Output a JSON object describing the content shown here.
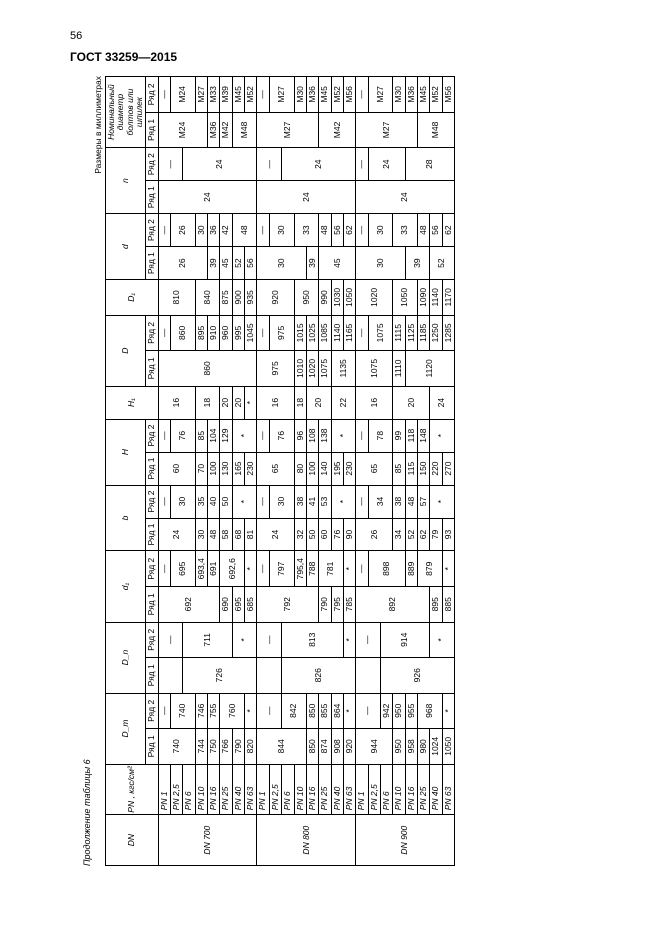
{
  "pageNumber": "56",
  "standard": "ГОСТ 33259—2015",
  "caption": "Продолжение таблицы 6",
  "rightNote": "Размеры в миллиметрах",
  "headers": {
    "DN": "DN",
    "PN": "PN , кгс/см²",
    "Dm": "D_m",
    "Dn": "D_n",
    "d1": "d₁",
    "b": "b",
    "H": "H",
    "H1": "H₁",
    "D": "D",
    "Dcap1": "D₁",
    "d": "d",
    "n": "n",
    "bolt": "Номинальный диаметр болтов или шпилек",
    "r1": "Ряд 1",
    "r2": "Ряд 2"
  },
  "groups": [
    {
      "dn": "DN 700",
      "rows": [
        {
          "pn": "PN 1",
          "Dm1": "740",
          "Dm2": "—",
          "Dn1": "",
          "Dn2": "—",
          "d11": "692",
          "d12": "—",
          "b1": "24",
          "b2": "—",
          "H1": "60",
          "H2": "—",
          "Hc": "16",
          "D1": "860",
          "D2": "—",
          "Dc": "810",
          "d1": "26",
          "d2": "—",
          "n1": "24",
          "n2": "—",
          "blt1": "M24",
          "blt2": "—"
        },
        {
          "pn": "PN 2,5",
          "Dm1": "",
          "Dm2": "740",
          "Dn1": "",
          "Dn2": "",
          "d11": "",
          "d12": "695",
          "b1": "",
          "b2": "30",
          "H1": "",
          "H2": "76",
          "Hc": "",
          "D1": "",
          "D2": "860",
          "Dc": "",
          "d1": "",
          "d2": "26",
          "n1": "",
          "n2": "",
          "blt1": "",
          "blt2": "M24"
        },
        {
          "pn": "PN 6",
          "Dm1": "",
          "Dm2": "",
          "Dn1": "726",
          "Dn2": "711",
          "d11": "",
          "d12": "",
          "b1": "",
          "b2": "",
          "H1": "",
          "H2": "",
          "Hc": "",
          "D1": "",
          "D2": "",
          "Dc": "",
          "d1": "",
          "d2": "",
          "n1": "",
          "n2": "24",
          "blt1": "",
          "blt2": ""
        },
        {
          "pn": "PN 10",
          "Dm1": "744",
          "Dm2": "746",
          "Dn1": "",
          "Dn2": "",
          "d11": "",
          "d12": "693,4",
          "b1": "30",
          "b2": "35",
          "H1": "70",
          "H2": "85",
          "Hc": "18",
          "D1": "",
          "D2": "895",
          "Dc": "840",
          "d1": "",
          "d2": "30",
          "n1": "",
          "n2": "",
          "blt1": "",
          "blt2": "M27"
        },
        {
          "pn": "PN 16",
          "Dm1": "750",
          "Dm2": "755",
          "Dn1": "",
          "Dn2": "",
          "d11": "",
          "d12": "691",
          "b1": "48",
          "b2": "40",
          "H1": "100",
          "H2": "104",
          "Hc": "",
          "D1": "",
          "D2": "910",
          "Dc": "",
          "d1": "39",
          "d2": "36",
          "n1": "",
          "n2": "",
          "blt1": "M36",
          "blt2": "M33"
        },
        {
          "pn": "PN 25",
          "Dm1": "766",
          "Dm2": "760",
          "Dn1": "",
          "Dn2": "",
          "d11": "690",
          "d12": "692,6",
          "b1": "58",
          "b2": "50",
          "H1": "130",
          "H2": "129",
          "Hc": "20",
          "D1": "",
          "D2": "960",
          "Dc": "875",
          "d1": "45",
          "d2": "42",
          "n1": "",
          "n2": "",
          "blt1": "M42",
          "blt2": "M39"
        },
        {
          "pn": "PN 40",
          "Dm1": "790",
          "Dm2": "",
          "Dn1": "",
          "Dn2": "*",
          "d11": "695",
          "d12": "",
          "b1": "68",
          "b2": "*",
          "H1": "165",
          "H2": "*",
          "Hc": "20",
          "D1": "",
          "D2": "995",
          "Dc": "900",
          "d1": "52",
          "d2": "48",
          "n1": "",
          "n2": "",
          "blt1": "M48",
          "blt2": "M45"
        },
        {
          "pn": "PN 63",
          "Dm1": "820",
          "Dm2": "*",
          "Dn1": "",
          "Dn2": "",
          "d11": "685",
          "d12": "*",
          "b1": "81",
          "b2": "",
          "H1": "230",
          "H2": "",
          "Hc": "*",
          "D1": "",
          "D2": "1045",
          "Dc": "935",
          "d1": "56",
          "d2": "",
          "n1": "",
          "n2": "",
          "blt1": "",
          "blt2": "M52"
        }
      ]
    },
    {
      "dn": "DN 800",
      "rows": [
        {
          "pn": "PN 1",
          "Dm1": "844",
          "Dm2": "—",
          "Dn1": "",
          "Dn2": "—",
          "d11": "792",
          "d12": "—",
          "b1": "24",
          "b2": "—",
          "H1": "65",
          "H2": "—",
          "Hc": "16",
          "D1": "975",
          "D2": "—",
          "Dc": "920",
          "d1": "30",
          "d2": "—",
          "n1": "24",
          "n2": "—",
          "blt1": "M27",
          "blt2": "—"
        },
        {
          "pn": "PN 2,5",
          "Dm1": "",
          "Dm2": "",
          "Dn1": "",
          "Dn2": "",
          "d11": "",
          "d12": "797",
          "b1": "",
          "b2": "30",
          "H1": "",
          "H2": "76",
          "Hc": "",
          "D1": "",
          "D2": "975",
          "Dc": "",
          "d1": "",
          "d2": "30",
          "n1": "",
          "n2": "",
          "blt1": "",
          "blt2": "M27"
        },
        {
          "pn": "PN 6",
          "Dm1": "",
          "Dm2": "842",
          "Dn1": "826",
          "Dn2": "813",
          "d11": "",
          "d12": "",
          "b1": "",
          "b2": "",
          "H1": "",
          "H2": "",
          "Hc": "",
          "D1": "",
          "D2": "",
          "Dc": "",
          "d1": "",
          "d2": "",
          "n1": "",
          "n2": "24",
          "blt1": "",
          "blt2": ""
        },
        {
          "pn": "PN 10",
          "Dm1": "",
          "Dm2": "",
          "Dn1": "",
          "Dn2": "",
          "d11": "",
          "d12": "795,4",
          "b1": "32",
          "b2": "38",
          "H1": "80",
          "H2": "96",
          "Hc": "18",
          "D1": "1010",
          "D2": "1015",
          "Dc": "950",
          "d1": "",
          "d2": "33",
          "n1": "",
          "n2": "",
          "blt1": "",
          "blt2": "M30"
        },
        {
          "pn": "PN 16",
          "Dm1": "850",
          "Dm2": "850",
          "Dn1": "",
          "Dn2": "",
          "d11": "",
          "d12": "788",
          "b1": "50",
          "b2": "41",
          "H1": "100",
          "H2": "108",
          "Hc": "20",
          "D1": "1020",
          "D2": "1025",
          "Dc": "",
          "d1": "39",
          "d2": "",
          "n1": "",
          "n2": "",
          "blt1": "",
          "blt2": "M36"
        },
        {
          "pn": "PN 25",
          "Dm1": "874",
          "Dm2": "855",
          "Dn1": "",
          "Dn2": "",
          "d11": "790",
          "d12": "781",
          "b1": "60",
          "b2": "53",
          "H1": "140",
          "H2": "138",
          "Hc": "",
          "D1": "1075",
          "D2": "1085",
          "Dc": "990",
          "d1": "45",
          "d2": "48",
          "n1": "",
          "n2": "",
          "blt1": "M42",
          "blt2": "M45"
        },
        {
          "pn": "PN 40",
          "Dm1": "908",
          "Dm2": "864",
          "Dn1": "",
          "Dn2": "",
          "d11": "795",
          "d12": "",
          "b1": "76",
          "b2": "*",
          "H1": "195",
          "H2": "*",
          "Hc": "22",
          "D1": "1135",
          "D2": "1140",
          "Dc": "1030",
          "d1": "",
          "d2": "56",
          "n1": "",
          "n2": "",
          "blt1": "",
          "blt2": "M52"
        },
        {
          "pn": "PN 63",
          "Dm1": "920",
          "Dm2": "*",
          "Dn1": "",
          "Dn2": "*",
          "d11": "785",
          "d12": "*",
          "b1": "90",
          "b2": "",
          "H1": "230",
          "H2": "",
          "Hc": "",
          "D1": "",
          "D2": "1165",
          "Dc": "1050",
          "d1": "",
          "d2": "62",
          "n1": "",
          "n2": "",
          "blt1": "",
          "blt2": "M56"
        }
      ]
    },
    {
      "dn": "DN 900",
      "rows": [
        {
          "pn": "PN 1",
          "Dm1": "944",
          "Dm2": "—",
          "Dn1": "",
          "Dn2": "—",
          "d11": "892",
          "d12": "—",
          "b1": "26",
          "b2": "—",
          "H1": "65",
          "H2": "—",
          "Hc": "16",
          "D1": "1075",
          "D2": "—",
          "Dc": "1020",
          "d1": "30",
          "d2": "—",
          "n1": "24",
          "n2": "—",
          "blt1": "M27",
          "blt2": "—"
        },
        {
          "pn": "PN 2,5",
          "Dm1": "",
          "Dm2": "",
          "Dn1": "",
          "Dn2": "",
          "d11": "",
          "d12": "898",
          "b1": "",
          "b2": "34",
          "H1": "",
          "H2": "78",
          "Hc": "",
          "D1": "",
          "D2": "1075",
          "Dc": "",
          "d1": "",
          "d2": "30",
          "n1": "",
          "n2": "24",
          "blt1": "",
          "blt2": "M27"
        },
        {
          "pn": "PN 6",
          "Dm1": "",
          "Dm2": "942",
          "Dn1": "926",
          "Dn2": "914",
          "d11": "",
          "d12": "",
          "b1": "",
          "b2": "",
          "H1": "",
          "H2": "",
          "Hc": "",
          "D1": "",
          "D2": "",
          "Dc": "",
          "d1": "",
          "d2": "",
          "n1": "",
          "n2": "",
          "blt1": "",
          "blt2": ""
        },
        {
          "pn": "PN 10",
          "Dm1": "950",
          "Dm2": "950",
          "Dn1": "",
          "Dn2": "",
          "d11": "",
          "d12": "",
          "b1": "34",
          "b2": "38",
          "H1": "85",
          "H2": "99",
          "Hc": "20",
          "D1": "1110",
          "D2": "1115",
          "Dc": "1050",
          "d1": "",
          "d2": "33",
          "n1": "",
          "n2": "",
          "blt1": "",
          "blt2": "M30"
        },
        {
          "pn": "PN 16",
          "Dm1": "958",
          "Dm2": "955",
          "Dn1": "",
          "Dn2": "",
          "d11": "",
          "d12": "889",
          "b1": "52",
          "b2": "48",
          "H1": "115",
          "H2": "118",
          "Hc": "",
          "D1": "1120",
          "D2": "1125",
          "Dc": "",
          "d1": "39",
          "d2": "",
          "n1": "",
          "n2": "28",
          "blt1": "",
          "blt2": "M36"
        },
        {
          "pn": "PN 25",
          "Dm1": "980",
          "Dm2": "968",
          "Dn1": "",
          "Dn2": "",
          "d11": "",
          "d12": "879",
          "b1": "62",
          "b2": "57",
          "H1": "150",
          "H2": "148",
          "Hc": "",
          "D1": "",
          "D2": "1185",
          "Dc": "1090",
          "d1": "",
          "d2": "48",
          "n1": "",
          "n2": "",
          "blt1": "M48",
          "blt2": "M45"
        },
        {
          "pn": "PN 40",
          "Dm1": "1024",
          "Dm2": "",
          "Dn1": "",
          "Dn2": "*",
          "d11": "895",
          "d12": "",
          "b1": "79",
          "b2": "*",
          "H1": "220",
          "H2": "*",
          "Hc": "24",
          "D1": "",
          "D2": "1250",
          "Dc": "1140",
          "d1": "52",
          "d2": "56",
          "n1": "",
          "n2": "",
          "blt1": "",
          "blt2": "M52"
        },
        {
          "pn": "PN 63",
          "Dm1": "1050",
          "Dm2": "*",
          "Dn1": "",
          "Dn2": "",
          "d11": "885",
          "d12": "*",
          "b1": "93",
          "b2": "",
          "H1": "270",
          "H2": "",
          "Hc": "",
          "D1": "",
          "D2": "1285",
          "Dc": "1170",
          "d1": "",
          "d2": "62",
          "n1": "",
          "n2": "",
          "blt1": "",
          "blt2": "M56"
        }
      ]
    }
  ]
}
